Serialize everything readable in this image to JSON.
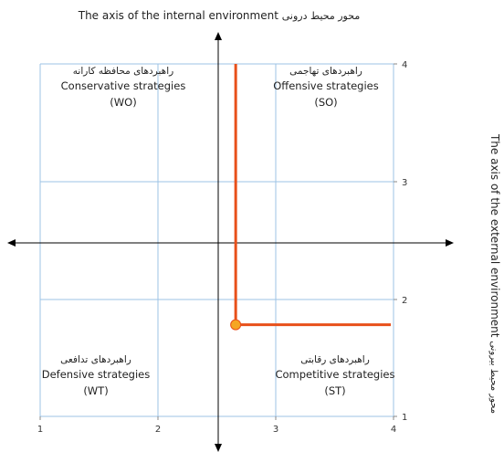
{
  "top_axis_title": {
    "en": "The axis of the internal environment",
    "fa": "محور محیط درونی"
  },
  "side_axis_title": {
    "en": "The axis of the external environment",
    "fa": "محور محیط بیرونی"
  },
  "x_axis_ticks": [
    "1",
    "2",
    "3",
    "4"
  ],
  "y_axis_ticks": [
    "4",
    "3",
    "2",
    "1"
  ],
  "quadrants": {
    "wo": {
      "fa": "راهبردهای محافظه کارانه",
      "en": "Conservative strategies",
      "code": "(WO)"
    },
    "so": {
      "fa": "راهبردهای تهاجمی",
      "en": "Offensive strategies",
      "code": "(SO)"
    },
    "wt": {
      "fa": "راهبردهای تدافعی",
      "en": "Defensive strategies",
      "code": "(WT)"
    },
    "st": {
      "fa": "راهبردهای رقابتی",
      "en": "Competitive strategies",
      "code": "(ST)"
    }
  },
  "result_point": {
    "x": 2.66,
    "y": 1.78
  },
  "colors": {
    "grid": "#9cc3e6",
    "result_line": "#e8501a",
    "result_marker": "#f5a623",
    "axis": "#000000"
  }
}
